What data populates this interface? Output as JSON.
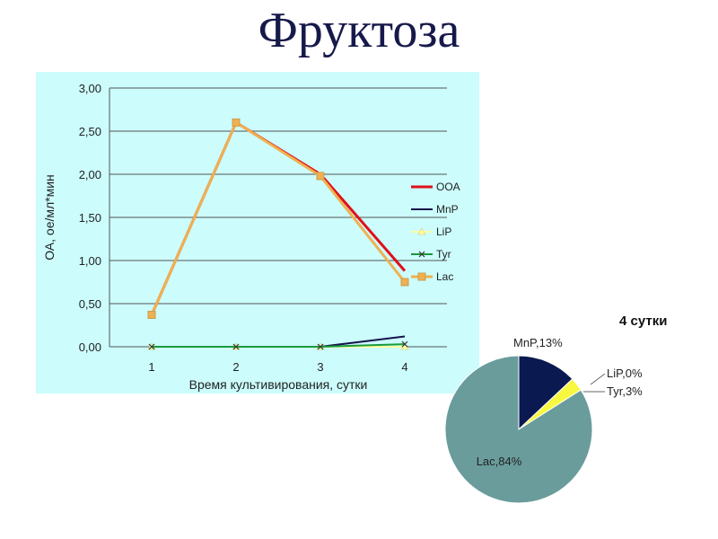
{
  "title": "Фруктоза",
  "chart_data": [
    {
      "type": "line",
      "x": [
        1,
        2,
        3,
        4
      ],
      "xlabel": "Время культивирования, сутки",
      "ylabel": "ОА, ое/мл*мин",
      "ylim": [
        0,
        3
      ],
      "yticks": [
        "0,00",
        "0,50",
        "1,00",
        "1,50",
        "2,00",
        "2,50",
        "3,00"
      ],
      "xticks": [
        "1",
        "2",
        "3",
        "4"
      ],
      "grid": true,
      "legend_position": "right",
      "series": [
        {
          "name": "OOA",
          "values": [
            0.37,
            2.6,
            2.0,
            0.88
          ],
          "color": "#e0101a",
          "marker": "none"
        },
        {
          "name": "MnP",
          "values": [
            0.0,
            0.0,
            0.0,
            0.12
          ],
          "color": "#14144a",
          "marker": "none"
        },
        {
          "name": "LiP",
          "values": [
            0.0,
            0.0,
            0.0,
            0.0
          ],
          "color": "#ffffa0",
          "marker": "triangle"
        },
        {
          "name": "Tyr",
          "values": [
            0.0,
            0.0,
            0.0,
            0.03
          ],
          "color": "#1a9a3a",
          "marker": "x"
        },
        {
          "name": "Lac",
          "values": [
            0.37,
            2.6,
            1.98,
            0.75
          ],
          "color": "#f0b050",
          "marker": "square"
        }
      ]
    },
    {
      "type": "pie",
      "title": "4 сутки",
      "slices": [
        {
          "name": "MnP",
          "label": "MnP,13%",
          "value": 13,
          "color": "#0a1a50"
        },
        {
          "name": "LiP",
          "label": "LiP,0%",
          "value": 0,
          "color": "#ffffa0"
        },
        {
          "name": "Tyr",
          "label": "Tyr,3%",
          "value": 3,
          "color": "#f8f840"
        },
        {
          "name": "Lac",
          "label": "Lac,84%",
          "value": 84,
          "color": "#6a9c9c"
        }
      ]
    }
  ]
}
